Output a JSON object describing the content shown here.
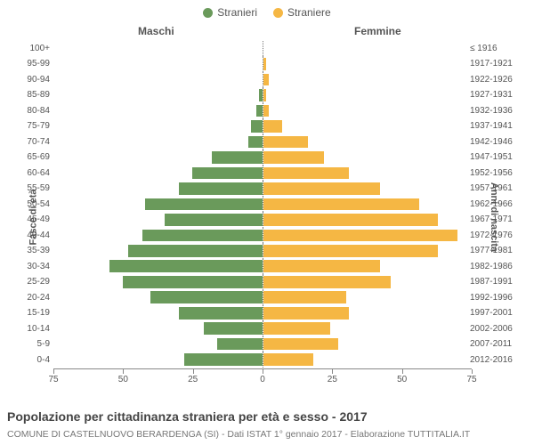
{
  "legend": {
    "male": {
      "label": "Stranieri",
      "color": "#6a9a5b"
    },
    "female": {
      "label": "Straniere",
      "color": "#f5b744"
    }
  },
  "headers": {
    "left": "Maschi",
    "right": "Femmine"
  },
  "axis_titles": {
    "left": "Fasce di età",
    "right": "Anni di nascita"
  },
  "title": "Popolazione per cittadinanza straniera per età e sesso - 2017",
  "subtitle": "COMUNE DI CASTELNUOVO BERARDENGA (SI) - Dati ISTAT 1° gennaio 2017 - Elaborazione TUTTITALIA.IT",
  "xaxis": {
    "max": 75,
    "ticks": [
      75,
      50,
      25,
      0,
      25,
      50,
      75
    ]
  },
  "chart_colors": {
    "male_bar": "#6a9a5b",
    "female_bar": "#f5b744",
    "center_line": "#777777",
    "axis_line": "#888888",
    "tick_text": "#555555",
    "bg": "#ffffff"
  },
  "rows": [
    {
      "age": "100+",
      "year": "≤ 1916",
      "m": 0,
      "f": 0
    },
    {
      "age": "95-99",
      "year": "1917-1921",
      "m": 0,
      "f": 1
    },
    {
      "age": "90-94",
      "year": "1922-1926",
      "m": 0,
      "f": 2
    },
    {
      "age": "85-89",
      "year": "1927-1931",
      "m": 1,
      "f": 1
    },
    {
      "age": "80-84",
      "year": "1932-1936",
      "m": 2,
      "f": 2
    },
    {
      "age": "75-79",
      "year": "1937-1941",
      "m": 4,
      "f": 7
    },
    {
      "age": "70-74",
      "year": "1942-1946",
      "m": 5,
      "f": 16
    },
    {
      "age": "65-69",
      "year": "1947-1951",
      "m": 18,
      "f": 22
    },
    {
      "age": "60-64",
      "year": "1952-1956",
      "m": 25,
      "f": 31
    },
    {
      "age": "55-59",
      "year": "1957-1961",
      "m": 30,
      "f": 42
    },
    {
      "age": "50-54",
      "year": "1962-1966",
      "m": 42,
      "f": 56
    },
    {
      "age": "45-49",
      "year": "1967-1971",
      "m": 35,
      "f": 63
    },
    {
      "age": "40-44",
      "year": "1972-1976",
      "m": 43,
      "f": 70
    },
    {
      "age": "35-39",
      "year": "1977-1981",
      "m": 48,
      "f": 63
    },
    {
      "age": "30-34",
      "year": "1982-1986",
      "m": 55,
      "f": 42
    },
    {
      "age": "25-29",
      "year": "1987-1991",
      "m": 50,
      "f": 46
    },
    {
      "age": "20-24",
      "year": "1992-1996",
      "m": 40,
      "f": 30
    },
    {
      "age": "15-19",
      "year": "1997-2001",
      "m": 30,
      "f": 31
    },
    {
      "age": "10-14",
      "year": "2002-2006",
      "m": 21,
      "f": 24
    },
    {
      "age": "5-9",
      "year": "2007-2011",
      "m": 16,
      "f": 27
    },
    {
      "age": "0-4",
      "year": "2012-2016",
      "m": 28,
      "f": 18
    }
  ]
}
